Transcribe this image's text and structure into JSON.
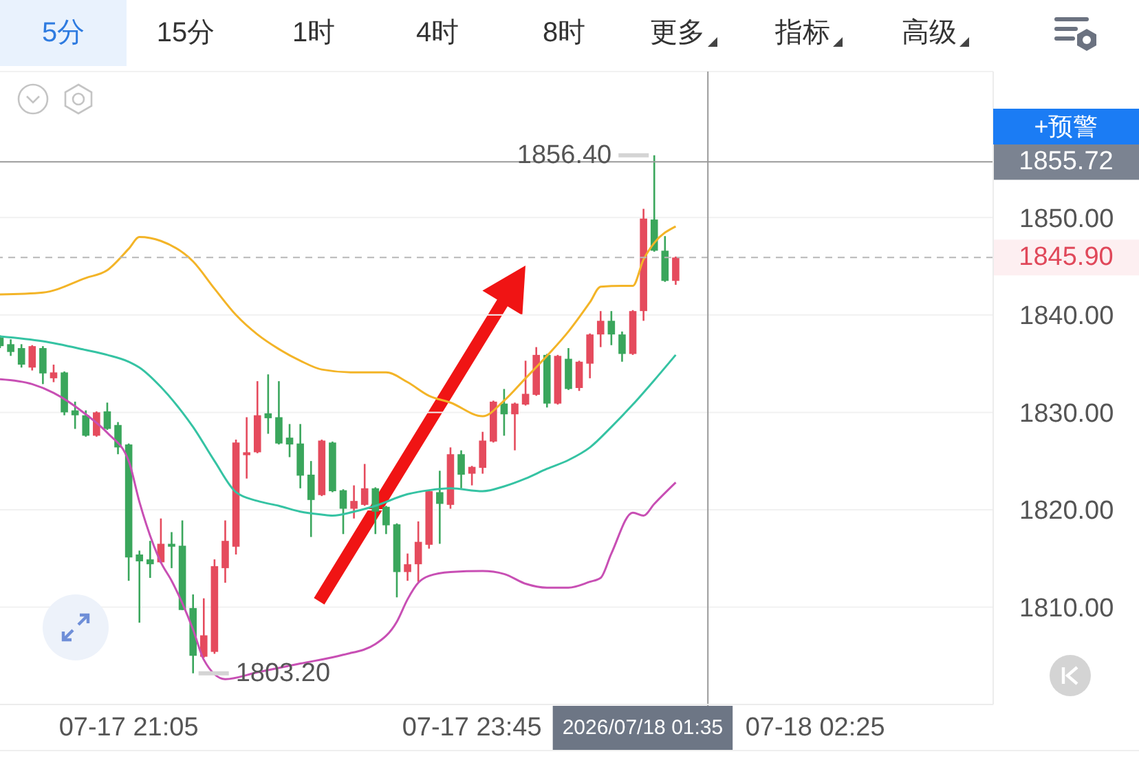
{
  "chart_data": {
    "type": "candlestick",
    "x": [
      "2026-07-17T20:05",
      "2026-07-17T20:10",
      "2026-07-17T20:15",
      "2026-07-17T20:20",
      "2026-07-17T20:25",
      "2026-07-17T20:30",
      "2026-07-17T20:35",
      "2026-07-17T20:40",
      "2026-07-17T20:45",
      "2026-07-17T20:50",
      "2026-07-17T20:55",
      "2026-07-17T21:00",
      "2026-07-17T21:05",
      "2026-07-17T21:10",
      "2026-07-17T21:15",
      "2026-07-17T21:20",
      "2026-07-17T21:25",
      "2026-07-17T21:30",
      "2026-07-17T21:35",
      "2026-07-17T21:40",
      "2026-07-17T21:45",
      "2026-07-17T21:50",
      "2026-07-17T21:55",
      "2026-07-17T22:00",
      "2026-07-17T22:05",
      "2026-07-17T22:10",
      "2026-07-17T22:15",
      "2026-07-17T22:20",
      "2026-07-17T22:25",
      "2026-07-17T22:30",
      "2026-07-17T22:35",
      "2026-07-17T22:40",
      "2026-07-17T22:45",
      "2026-07-17T22:50",
      "2026-07-17T22:55",
      "2026-07-17T23:00",
      "2026-07-17T23:05",
      "2026-07-17T23:10",
      "2026-07-17T23:15",
      "2026-07-17T23:20",
      "2026-07-17T23:25",
      "2026-07-17T23:30",
      "2026-07-17T23:35",
      "2026-07-17T23:40",
      "2026-07-17T23:45",
      "2026-07-17T23:50",
      "2026-07-17T23:55",
      "2026-07-18T00:00",
      "2026-07-18T00:05",
      "2026-07-18T00:10",
      "2026-07-18T00:15",
      "2026-07-18T00:20",
      "2026-07-18T00:25",
      "2026-07-18T00:30",
      "2026-07-18T00:35",
      "2026-07-18T00:40",
      "2026-07-18T00:45",
      "2026-07-18T00:50",
      "2026-07-18T00:55",
      "2026-07-18T01:00",
      "2026-07-18T01:05",
      "2026-07-18T01:10",
      "2026-07-18T01:15",
      "2026-07-18T01:20"
    ],
    "ohlc": [
      [
        1837.7,
        1837.9,
        1836.6,
        1836.8
      ],
      [
        1837.0,
        1837.5,
        1835.8,
        1836.2
      ],
      [
        1836.6,
        1837.0,
        1834.6,
        1834.9
      ],
      [
        1834.6,
        1836.9,
        1834.3,
        1836.8
      ],
      [
        1836.6,
        1836.8,
        1832.9,
        1834.0
      ],
      [
        1833.5,
        1834.9,
        1833.1,
        1834.1
      ],
      [
        1834.1,
        1834.2,
        1829.7,
        1830.0
      ],
      [
        1830.2,
        1831.1,
        1828.3,
        1829.7
      ],
      [
        1829.7,
        1830.2,
        1827.5,
        1827.6
      ],
      [
        1827.6,
        1830.1,
        1827.5,
        1830.0
      ],
      [
        1830.1,
        1831.0,
        1828.2,
        1828.3
      ],
      [
        1828.7,
        1829.0,
        1825.7,
        1826.4
      ],
      [
        1826.7,
        1826.8,
        1812.7,
        1815.1
      ],
      [
        1815.4,
        1815.8,
        1808.4,
        1814.7
      ],
      [
        1814.9,
        1816.8,
        1813.0,
        1814.4
      ],
      [
        1814.6,
        1819.1,
        1814.5,
        1816.5
      ],
      [
        1816.5,
        1817.7,
        1814.0,
        1816.2
      ],
      [
        1816.3,
        1818.9,
        1809.7,
        1809.7
      ],
      [
        1809.9,
        1811.3,
        1803.2,
        1805.0
      ],
      [
        1804.9,
        1810.9,
        1804.8,
        1807.1
      ],
      [
        1805.4,
        1814.9,
        1805.2,
        1814.2
      ],
      [
        1814.0,
        1818.9,
        1812.5,
        1816.8
      ],
      [
        1816.2,
        1827.2,
        1815.4,
        1826.9
      ],
      [
        1825.6,
        1829.5,
        1823.2,
        1825.9
      ],
      [
        1825.9,
        1833.2,
        1825.8,
        1829.7
      ],
      [
        1829.9,
        1833.9,
        1827.8,
        1829.4
      ],
      [
        1829.5,
        1833.2,
        1826.7,
        1826.8
      ],
      [
        1827.4,
        1828.8,
        1825.4,
        1826.7
      ],
      [
        1826.8,
        1828.8,
        1822.2,
        1823.5
      ],
      [
        1823.6,
        1825.0,
        1817.2,
        1821.0
      ],
      [
        1821.5,
        1827.2,
        1821.4,
        1827.1
      ],
      [
        1826.9,
        1827.0,
        1821.8,
        1821.9
      ],
      [
        1822.0,
        1822.1,
        1817.5,
        1820.1
      ],
      [
        1820.1,
        1822.5,
        1819.1,
        1820.9
      ],
      [
        1820.5,
        1824.7,
        1820.4,
        1822.2
      ],
      [
        1822.2,
        1822.3,
        1817.5,
        1819.8
      ],
      [
        1820.3,
        1820.4,
        1817.5,
        1818.4
      ],
      [
        1818.5,
        1818.6,
        1811.0,
        1813.6
      ],
      [
        1813.6,
        1815.5,
        1812.7,
        1814.4
      ],
      [
        1814.4,
        1818.8,
        1812.6,
        1816.7
      ],
      [
        1816.4,
        1822.0,
        1816.0,
        1821.9
      ],
      [
        1821.8,
        1824.0,
        1816.5,
        1820.6
      ],
      [
        1820.5,
        1826.4,
        1820.1,
        1825.7
      ],
      [
        1825.7,
        1826.1,
        1822.2,
        1823.6
      ],
      [
        1823.7,
        1824.5,
        1822.5,
        1824.4
      ],
      [
        1824.3,
        1828.0,
        1823.7,
        1827.1
      ],
      [
        1827.0,
        1831.2,
        1826.9,
        1831.1
      ],
      [
        1830.9,
        1832.4,
        1827.6,
        1829.8
      ],
      [
        1829.8,
        1831.0,
        1826.1,
        1830.9
      ],
      [
        1830.8,
        1835.3,
        1830.7,
        1831.9
      ],
      [
        1831.8,
        1836.7,
        1831.7,
        1835.9
      ],
      [
        1835.9,
        1836.0,
        1830.5,
        1830.9
      ],
      [
        1830.9,
        1835.9,
        1830.8,
        1835.8
      ],
      [
        1835.5,
        1836.6,
        1832.3,
        1832.4
      ],
      [
        1832.5,
        1835.3,
        1832.2,
        1835.2
      ],
      [
        1835.0,
        1838.1,
        1833.5,
        1838.0
      ],
      [
        1838.0,
        1840.4,
        1836.7,
        1839.4
      ],
      [
        1839.4,
        1840.4,
        1836.9,
        1838.0
      ],
      [
        1838.0,
        1838.3,
        1835.2,
        1836.0
      ],
      [
        1836.0,
        1840.5,
        1835.9,
        1840.4
      ],
      [
        1840.4,
        1850.9,
        1839.4,
        1849.9
      ],
      [
        1849.8,
        1856.4,
        1846.5,
        1846.6
      ],
      [
        1846.6,
        1848.1,
        1843.4,
        1843.5
      ],
      [
        1843.5,
        1846.0,
        1843.1,
        1845.9
      ]
    ],
    "colors": [
      "#3aa65c",
      "#3aa65c",
      "#3aa65c",
      "#e54b5d",
      "#3aa65c",
      "#e54b5d",
      "#3aa65c",
      "#3aa65c",
      "#3aa65c",
      "#e54b5d",
      "#3aa65c",
      "#3aa65c",
      "#3aa65c",
      "#3aa65c",
      "#3aa65c",
      "#e54b5d",
      "#3aa65c",
      "#3aa65c",
      "#3aa65c",
      "#e54b5d",
      "#e54b5d",
      "#e54b5d",
      "#e54b5d",
      "#e54b5d",
      "#e54b5d",
      "#3aa65c",
      "#3aa65c",
      "#3aa65c",
      "#3aa65c",
      "#3aa65c",
      "#e54b5d",
      "#3aa65c",
      "#3aa65c",
      "#e54b5d",
      "#e54b5d",
      "#3aa65c",
      "#3aa65c",
      "#3aa65c",
      "#e54b5d",
      "#e54b5d",
      "#e54b5d",
      "#3aa65c",
      "#e54b5d",
      "#3aa65c",
      "#e54b5d",
      "#e54b5d",
      "#e54b5d",
      "#3aa65c",
      "#e54b5d",
      "#e54b5d",
      "#e54b5d",
      "#3aa65c",
      "#e54b5d",
      "#3aa65c",
      "#e54b5d",
      "#e54b5d",
      "#e54b5d",
      "#3aa65c",
      "#3aa65c",
      "#e54b5d",
      "#e54b5d",
      "#3aa65c",
      "#3aa65c",
      "#e54b5d"
    ],
    "series": [
      {
        "type": "line",
        "color": "#f3b427",
        "x": [
          "2026-07-17T20:05",
          "2026-07-17T20:25",
          "2026-07-17T20:45",
          "2026-07-17T20:55",
          "2026-07-17T21:05",
          "2026-07-17T21:10",
          "2026-07-17T21:20",
          "2026-07-17T21:35",
          "2026-07-17T21:45",
          "2026-07-17T21:55",
          "2026-07-17T22:05",
          "2026-07-17T22:15",
          "2026-07-17T22:25",
          "2026-07-17T22:35",
          "2026-07-17T22:50",
          "2026-07-17T23:05",
          "2026-07-17T23:15",
          "2026-07-17T23:25",
          "2026-07-17T23:35",
          "2026-07-17T23:50",
          "2026-07-18T00:00",
          "2026-07-18T00:10",
          "2026-07-18T00:20",
          "2026-07-18T00:30",
          "2026-07-18T00:40",
          "2026-07-18T00:45",
          "2026-07-18T00:55",
          "2026-07-18T01:00",
          "2026-07-18T01:05",
          "2026-07-18T01:10",
          "2026-07-18T01:20"
        ],
        "values": [
          1842.1,
          1842.3,
          1843.8,
          1844.6,
          1846.8,
          1848.0,
          1847.6,
          1845.5,
          1842.7,
          1840.0,
          1838.0,
          1836.5,
          1835.3,
          1834.4,
          1834.1,
          1834.1,
          1833.1,
          1831.7,
          1831.0,
          1829.6,
          1831.2,
          1833.5,
          1835.8,
          1838.3,
          1841.3,
          1842.9,
          1843.0,
          1843.0,
          1845.7,
          1847.4,
          1849.1
        ]
      },
      {
        "type": "line",
        "color": "#35c3a3",
        "x": [
          "2026-07-17T20:05",
          "2026-07-17T20:25",
          "2026-07-17T20:45",
          "2026-07-17T20:55",
          "2026-07-17T21:05",
          "2026-07-17T21:10",
          "2026-07-17T21:20",
          "2026-07-17T21:30",
          "2026-07-17T21:35",
          "2026-07-17T21:45",
          "2026-07-17T21:55",
          "2026-07-17T22:05",
          "2026-07-17T22:15",
          "2026-07-17T22:25",
          "2026-07-17T22:35",
          "2026-07-17T22:40",
          "2026-07-17T22:50",
          "2026-07-17T23:00",
          "2026-07-17T23:15",
          "2026-07-17T23:25",
          "2026-07-17T23:35",
          "2026-07-17T23:50",
          "2026-07-18T00:00",
          "2026-07-18T00:10",
          "2026-07-18T00:20",
          "2026-07-18T00:30",
          "2026-07-18T00:40",
          "2026-07-18T00:50",
          "2026-07-18T01:00",
          "2026-07-18T01:10",
          "2026-07-18T01:20"
        ],
        "values": [
          1837.8,
          1837.3,
          1836.4,
          1835.9,
          1835.2,
          1834.6,
          1832.6,
          1830.0,
          1828.5,
          1825.0,
          1821.8,
          1820.9,
          1820.4,
          1819.8,
          1819.5,
          1819.4,
          1819.8,
          1820.4,
          1821.6,
          1822.0,
          1822.2,
          1821.9,
          1822.4,
          1823.2,
          1824.2,
          1825.1,
          1826.4,
          1828.5,
          1830.8,
          1833.3,
          1835.9
        ]
      },
      {
        "type": "line",
        "color": "#c84fb4",
        "x": [
          "2026-07-17T20:05",
          "2026-07-17T20:20",
          "2026-07-17T20:30",
          "2026-07-17T20:45",
          "2026-07-17T20:55",
          "2026-07-17T21:05",
          "2026-07-17T21:10",
          "2026-07-17T21:20",
          "2026-07-17T21:25",
          "2026-07-17T21:30",
          "2026-07-17T21:35",
          "2026-07-17T21:40",
          "2026-07-17T21:50",
          "2026-07-17T22:05",
          "2026-07-17T22:25",
          "2026-07-17T22:45",
          "2026-07-17T23:00",
          "2026-07-17T23:10",
          "2026-07-17T23:15",
          "2026-07-17T23:20",
          "2026-07-17T23:25",
          "2026-07-17T23:35",
          "2026-07-17T23:50",
          "2026-07-18T00:00",
          "2026-07-18T00:10",
          "2026-07-18T00:20",
          "2026-07-18T00:30",
          "2026-07-18T00:40",
          "2026-07-18T00:45",
          "2026-07-18T00:50",
          "2026-07-18T01:00",
          "2026-07-18T01:05",
          "2026-07-18T01:10",
          "2026-07-18T01:20"
        ],
        "values": [
          1833.4,
          1832.9,
          1832.0,
          1829.8,
          1827.9,
          1825.0,
          1820.8,
          1814.6,
          1812.7,
          1810.4,
          1807.7,
          1804.6,
          1802.6,
          1803.3,
          1804.2,
          1805.1,
          1806.2,
          1808.5,
          1810.8,
          1812.5,
          1813.2,
          1813.6,
          1813.7,
          1813.4,
          1812.4,
          1812.0,
          1812.0,
          1812.6,
          1813.0,
          1815.5,
          1819.7,
          1819.4,
          1820.6,
          1822.8
        ]
      }
    ],
    "xlim": [
      "2026-07-17T20:05",
      "2026-07-18T03:48"
    ],
    "xticks": [
      {
        "value": "2026-07-17T21:05",
        "label": "07-17 21:05"
      },
      {
        "value": "2026-07-17T23:45",
        "label": "07-17 23:45"
      },
      {
        "value": "2026-07-18T02:25",
        "label": "07-18 02:25"
      }
    ],
    "ylim": [
      1800,
      1865
    ],
    "yticks": [
      {
        "value": 1810,
        "label": "1810.00"
      },
      {
        "value": 1820,
        "label": "1820.00"
      },
      {
        "value": 1830,
        "label": "1830.00"
      },
      {
        "value": 1840,
        "label": "1840.00"
      },
      {
        "value": 1850,
        "label": "1850.00"
      }
    ],
    "grid": "y",
    "ref_lines": [
      {
        "axis": "y",
        "value": 1855.72,
        "label": "1855.72",
        "color": "#9a9a9a"
      },
      {
        "axis": "y",
        "value": 1845.9,
        "label": "1845.90",
        "color": "#b8b8b8",
        "line_style": "dashed"
      },
      {
        "axis": "x",
        "value": "2026-07-18T01:35",
        "label": "2026/07/18 01:35",
        "color": "#9a9a9a"
      }
    ],
    "annotations": [
      "5分",
      "15分",
      "1时",
      "4时",
      "8时",
      "更多",
      "指标",
      "高级",
      "+预警",
      {
        "text": "1856.40",
        "x": "2026-07-18T01:10",
        "y": 1856.4
      },
      {
        "text": "1803.20",
        "x": "2026-07-17T21:35",
        "y": 1803.2
      }
    ]
  }
}
